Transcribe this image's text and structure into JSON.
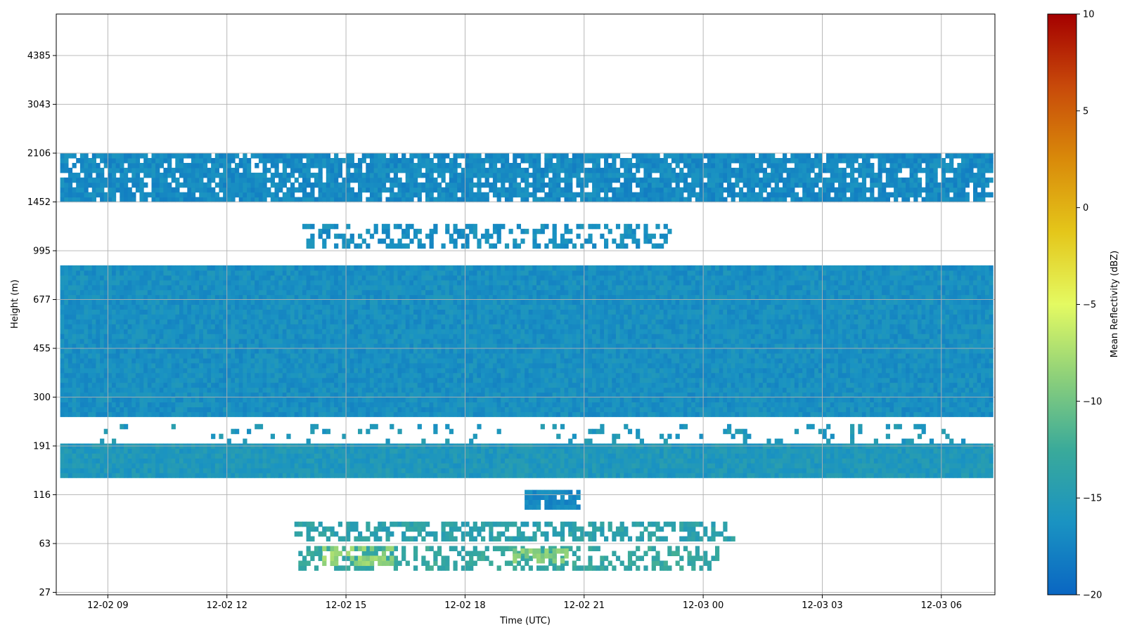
{
  "chart_data": {
    "type": "heatmap",
    "title": "",
    "xlabel": "Time (UTC)",
    "ylabel": "Height (m)",
    "colorbar_label": "Mean Reflectivity (dBZ)",
    "x_ticks": [
      {
        "label": "12-02 09",
        "hours": 9
      },
      {
        "label": "12-02 12",
        "hours": 12
      },
      {
        "label": "12-02 15",
        "hours": 15
      },
      {
        "label": "12-02 18",
        "hours": 18
      },
      {
        "label": "12-02 21",
        "hours": 21
      },
      {
        "label": "12-03 00",
        "hours": 24
      },
      {
        "label": "12-03 03",
        "hours": 27
      },
      {
        "label": "12-03 06",
        "hours": 30
      }
    ],
    "x_range_hours": [
      7.7,
      31.35
    ],
    "data_time_range_hours": [
      7.8,
      31.25
    ],
    "y_ticks": [
      "27",
      "63",
      "116",
      "191",
      "300",
      "455",
      "677",
      "995",
      "1452",
      "2106",
      "3043",
      "4385"
    ],
    "y_range_ticks": [
      -0.05,
      11.85
    ],
    "colorbar": {
      "vmin": -20,
      "vmax": 10,
      "ticks": [
        -20,
        -15,
        -10,
        -5,
        0,
        5,
        10
      ],
      "colors": [
        "#0a66c2",
        "#1a93c2",
        "#3aaa9a",
        "#8dd07a",
        "#e4fa62",
        "#e4c61a",
        "#d98a0a",
        "#c84a0a",
        "#a40000"
      ]
    },
    "grid": true,
    "layers": [
      {
        "y_from": 8.0,
        "y_to": 9.0,
        "x_from": 7.8,
        "x_to": 31.25,
        "dbz": -17.0,
        "coverage": 0.85
      },
      {
        "y_from": 7.05,
        "y_to": 7.5,
        "x_from": 13.9,
        "x_to": 23.2,
        "dbz": -16.5,
        "coverage": 0.45
      },
      {
        "y_from": 3.6,
        "y_to": 6.7,
        "x_from": 7.8,
        "x_to": 31.25,
        "dbz": -16.5,
        "coverage": 1.0
      },
      {
        "y_from": 2.35,
        "y_to": 3.0,
        "x_from": 7.8,
        "x_to": 31.25,
        "dbz": -15.5,
        "coverage": 1.0
      },
      {
        "y_from": 3.05,
        "y_to": 3.45,
        "x_from": 8.8,
        "x_to": 30.7,
        "dbz": -15.5,
        "coverage": 0.12
      },
      {
        "y_from": 1.7,
        "y_to": 2.1,
        "x_from": 19.5,
        "x_to": 20.9,
        "dbz": -17.0,
        "coverage": 0.9
      },
      {
        "y_from": 1.05,
        "y_to": 1.45,
        "x_from": 13.7,
        "x_to": 24.8,
        "dbz": -14.0,
        "coverage": 0.55
      },
      {
        "y_from": 0.45,
        "y_to": 0.9,
        "x_from": 13.8,
        "x_to": 24.4,
        "dbz": -13.0,
        "coverage": 0.45
      },
      {
        "y_from": 0.55,
        "y_to": 0.95,
        "x_from": 14.4,
        "x_to": 16.2,
        "dbz": -8.5,
        "coverage": 0.5
      },
      {
        "y_from": 0.6,
        "y_to": 0.9,
        "x_from": 19.2,
        "x_to": 20.6,
        "dbz": -9.0,
        "coverage": 0.5
      }
    ]
  }
}
